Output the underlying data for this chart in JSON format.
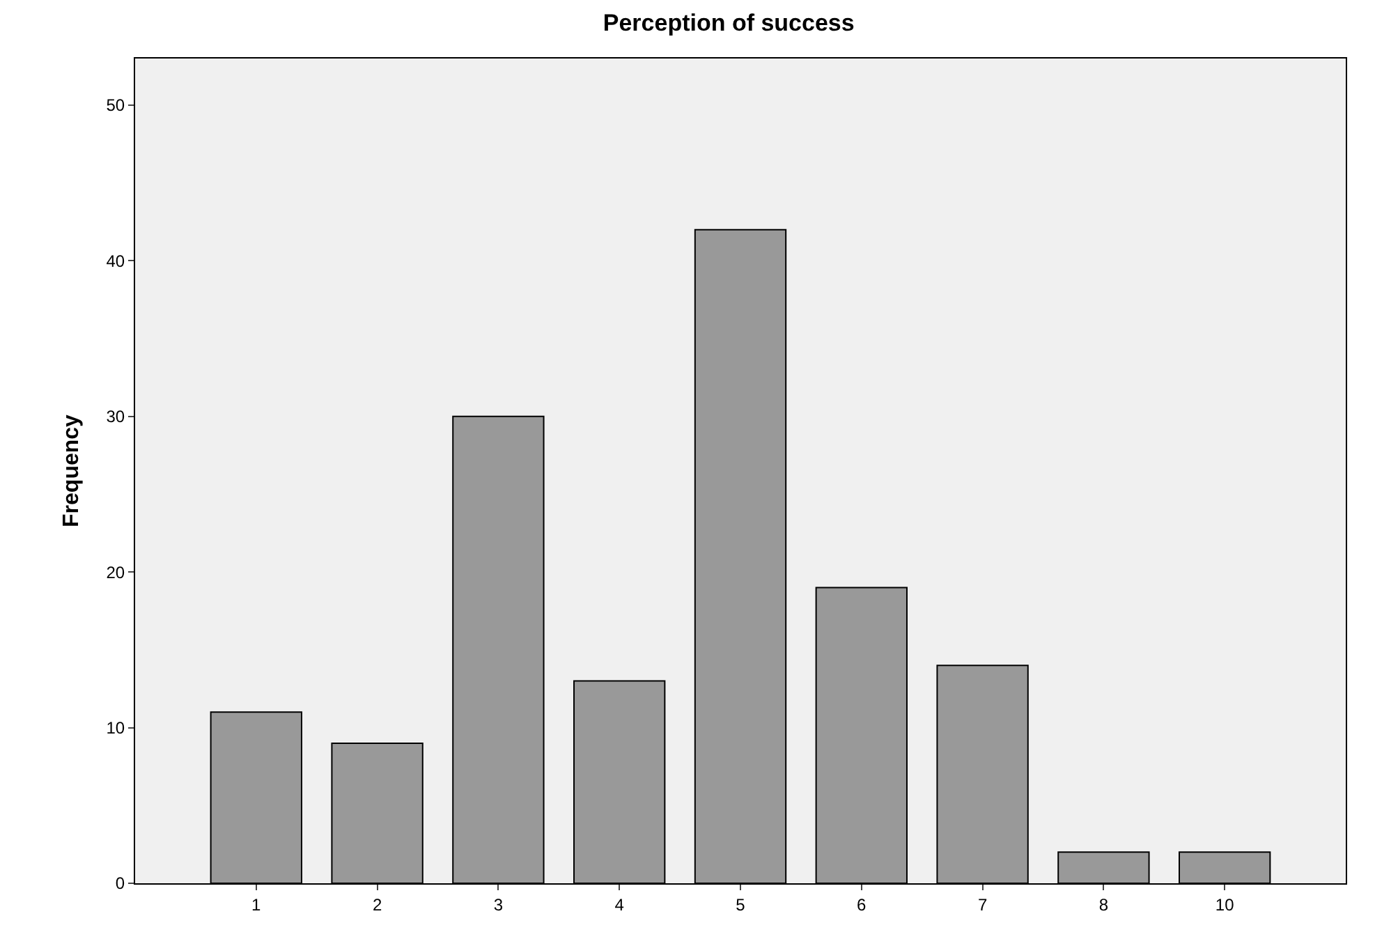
{
  "chart_data": {
    "type": "bar",
    "title": "Perception of success",
    "ylabel": "Frequency",
    "categories": [
      "1",
      "2",
      "3",
      "4",
      "5",
      "6",
      "7",
      "8",
      "10"
    ],
    "values": [
      11,
      9,
      30,
      13,
      42,
      19,
      14,
      2,
      2
    ],
    "color": "#999999",
    "ylim": [
      0,
      53
    ],
    "yticks": [
      0,
      10,
      20,
      30,
      40,
      50
    ],
    "grid": false,
    "legend": false
  }
}
